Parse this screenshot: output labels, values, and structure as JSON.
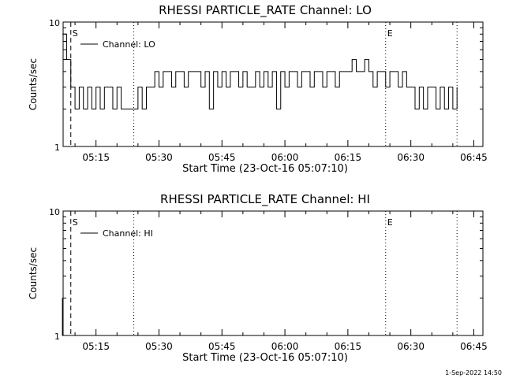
{
  "chart_data": [
    {
      "type": "line",
      "title": "RHESSI PARTICLE_RATE Channel: LO",
      "xlabel": "Start Time (23-Oct-16 05:07:10)",
      "ylabel": "Counts/sec",
      "y_scale": "log",
      "ylim": [
        1,
        10
      ],
      "y_ticks": [
        "1",
        "10"
      ],
      "xlim_minutes_after_start": [
        0,
        100
      ],
      "x_ticks": [
        "05:15",
        "05:30",
        "05:45",
        "06:00",
        "06:15",
        "06:30",
        "06:45"
      ],
      "markers": [
        {
          "label": "S",
          "style": "dashed",
          "time": "05:09"
        },
        {
          "label": "",
          "style": "dotted",
          "time": "05:24"
        },
        {
          "label": "E",
          "style": "dotted",
          "time": "06:24"
        },
        {
          "label": "",
          "style": "dotted",
          "time": "06:41"
        }
      ],
      "legend": {
        "position": "top-left",
        "entries": [
          "Channel: LO"
        ]
      },
      "series": [
        {
          "name": "Channel: LO",
          "times": [
            "05:07",
            "05:08",
            "05:09",
            "05:10",
            "05:11",
            "05:12",
            "05:13",
            "05:14",
            "05:15",
            "05:16",
            "05:17",
            "05:18",
            "05:19",
            "05:20",
            "05:21",
            "05:22",
            "05:23",
            "05:24",
            "05:25",
            "05:26",
            "05:27",
            "05:28",
            "05:29",
            "05:30",
            "05:31",
            "05:32",
            "05:33",
            "05:34",
            "05:35",
            "05:36",
            "05:37",
            "05:38",
            "05:39",
            "05:40",
            "05:41",
            "05:42",
            "05:43",
            "05:44",
            "05:45",
            "05:46",
            "05:47",
            "05:48",
            "05:49",
            "05:50",
            "05:51",
            "05:52",
            "05:53",
            "05:54",
            "05:55",
            "05:56",
            "05:57",
            "05:58",
            "05:59",
            "06:00",
            "06:01",
            "06:02",
            "06:03",
            "06:04",
            "06:05",
            "06:06",
            "06:07",
            "06:08",
            "06:09",
            "06:10",
            "06:11",
            "06:12",
            "06:13",
            "06:14",
            "06:15",
            "06:16",
            "06:17",
            "06:18",
            "06:19",
            "06:20",
            "06:21",
            "06:22",
            "06:23",
            "06:24",
            "06:25",
            "06:26",
            "06:27",
            "06:28",
            "06:29",
            "06:30",
            "06:31",
            "06:32",
            "06:33",
            "06:34",
            "06:35",
            "06:36",
            "06:37",
            "06:38",
            "06:39",
            "06:40",
            "06:41"
          ],
          "values": [
            8,
            5,
            3,
            2,
            3,
            2,
            3,
            2,
            3,
            2,
            3,
            3,
            2,
            3,
            2,
            2,
            2,
            2,
            3,
            2,
            3,
            3,
            4,
            3,
            4,
            4,
            3,
            4,
            4,
            3,
            4,
            4,
            4,
            3,
            4,
            2,
            4,
            3,
            4,
            3,
            4,
            4,
            3,
            4,
            3,
            3,
            4,
            3,
            4,
            3,
            4,
            2,
            4,
            3,
            4,
            4,
            3,
            4,
            4,
            3,
            4,
            4,
            3,
            4,
            4,
            3,
            4,
            4,
            4,
            5,
            4,
            4,
            5,
            4,
            3,
            4,
            4,
            3,
            4,
            4,
            3,
            4,
            3,
            3,
            2,
            3,
            2,
            3,
            3,
            2,
            3,
            2,
            3,
            2,
            3
          ]
        }
      ]
    },
    {
      "type": "line",
      "title": "RHESSI PARTICLE_RATE Channel: HI",
      "xlabel": "Start Time (23-Oct-16 05:07:10)",
      "ylabel": "Counts/sec",
      "y_scale": "log",
      "ylim": [
        1,
        10
      ],
      "y_ticks": [
        "1",
        "10"
      ],
      "xlim_minutes_after_start": [
        0,
        100
      ],
      "x_ticks": [
        "05:15",
        "05:30",
        "05:45",
        "06:00",
        "06:15",
        "06:30",
        "06:45"
      ],
      "markers": [
        {
          "label": "S",
          "style": "dashed",
          "time": "05:09"
        },
        {
          "label": "",
          "style": "dotted",
          "time": "05:24"
        },
        {
          "label": "E",
          "style": "dotted",
          "time": "06:24"
        },
        {
          "label": "",
          "style": "dotted",
          "time": "06:41"
        }
      ],
      "legend": {
        "position": "top-left",
        "entries": [
          "Channel: HI"
        ]
      },
      "series": [
        {
          "name": "Channel: HI",
          "times": [
            "05:07",
            "05:07",
            "05:08"
          ],
          "values": [
            2,
            1,
            1
          ]
        }
      ]
    }
  ],
  "footer": {
    "date_stamp": "1-Sep-2022 14:50"
  }
}
